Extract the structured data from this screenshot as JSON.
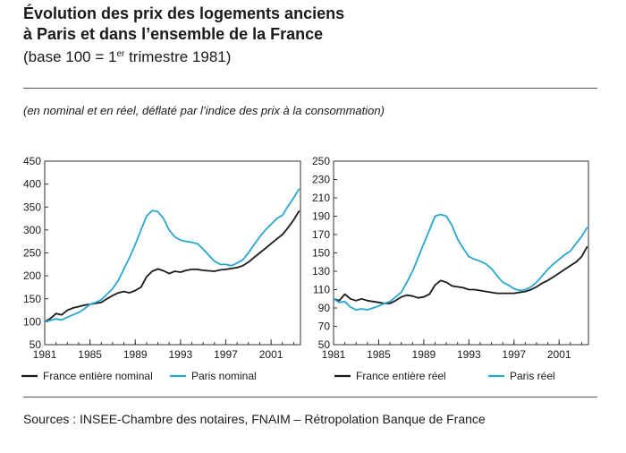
{
  "header": {
    "title_line1": "Évolution des prix des logements anciens",
    "title_line2": "à Paris et dans l’ensemble de la France",
    "base_prefix": "(base 100 = 1",
    "base_sup": "er",
    "base_suffix": " trimestre 1981)",
    "note": "(en nominal et en réel, déflaté par l’indice des prix à la consommation)"
  },
  "footer": {
    "sources": "Sources : INSEE-Chambre des notaires, FNAIM – Rétropolation Banque de France"
  },
  "colors": {
    "france": "#1a1a1a",
    "paris": "#29a6d0"
  },
  "chart_data": [
    {
      "type": "line",
      "xlim": [
        1981,
        2003.6
      ],
      "ylim": [
        50,
        450
      ],
      "yticks": [
        50,
        100,
        150,
        200,
        250,
        300,
        350,
        400,
        450
      ],
      "xticks": [
        1981,
        1985,
        1989,
        1993,
        1997,
        2001
      ],
      "x": [
        1981,
        1981.5,
        1982,
        1982.5,
        1983,
        1983.5,
        1984,
        1984.5,
        1985,
        1985.5,
        1986,
        1986.5,
        1987,
        1987.5,
        1988,
        1988.5,
        1989,
        1989.5,
        1990,
        1990.5,
        1991,
        1991.5,
        1992,
        1992.5,
        1993,
        1993.5,
        1994,
        1994.5,
        1995,
        1995.5,
        1996,
        1996.5,
        1997,
        1997.5,
        1998,
        1998.5,
        1999,
        1999.5,
        2000,
        2000.5,
        2001,
        2001.5,
        2002,
        2002.5,
        2003,
        2003.5
      ],
      "series": [
        {
          "name": "France entière nominal",
          "values": [
            100,
            107,
            118,
            115,
            125,
            130,
            133,
            136,
            138,
            140,
            142,
            150,
            157,
            163,
            166,
            163,
            168,
            175,
            198,
            210,
            215,
            211,
            205,
            210,
            208,
            212,
            214,
            214,
            212,
            211,
            210,
            213,
            214,
            216,
            218,
            222,
            230,
            240,
            250,
            260,
            270,
            280,
            290,
            305,
            322,
            342
          ]
        },
        {
          "name": "Paris nominal",
          "values": [
            100,
            103,
            106,
            104,
            110,
            115,
            120,
            128,
            138,
            142,
            148,
            160,
            172,
            190,
            215,
            240,
            268,
            300,
            330,
            342,
            340,
            325,
            300,
            285,
            278,
            275,
            273,
            270,
            258,
            245,
            232,
            225,
            225,
            222,
            228,
            235,
            250,
            268,
            285,
            300,
            312,
            325,
            332,
            352,
            370,
            390
          ]
        }
      ]
    },
    {
      "type": "line",
      "xlim": [
        1981,
        2003.6
      ],
      "ylim": [
        50,
        250
      ],
      "yticks": [
        50,
        70,
        90,
        110,
        130,
        150,
        170,
        190,
        210,
        230,
        250
      ],
      "xticks": [
        1981,
        1985,
        1989,
        1993,
        1997,
        2001
      ],
      "x": [
        1981,
        1981.5,
        1982,
        1982.5,
        1983,
        1983.5,
        1984,
        1984.5,
        1985,
        1985.5,
        1986,
        1986.5,
        1987,
        1987.5,
        1988,
        1988.5,
        1989,
        1989.5,
        1990,
        1990.5,
        1991,
        1991.5,
        1992,
        1992.5,
        1993,
        1993.5,
        1994,
        1994.5,
        1995,
        1995.5,
        1996,
        1996.5,
        1997,
        1997.5,
        1998,
        1998.5,
        1999,
        1999.5,
        2000,
        2000.5,
        2001,
        2001.5,
        2002,
        2002.5,
        2003,
        2003.5
      ],
      "series": [
        {
          "name": "France entière réel",
          "values": [
            100,
            98,
            105,
            100,
            98,
            100,
            98,
            97,
            96,
            95,
            95,
            98,
            102,
            104,
            103,
            101,
            102,
            105,
            115,
            120,
            118,
            114,
            113,
            112,
            110,
            110,
            109,
            108,
            107,
            106,
            106,
            106,
            106,
            107,
            108,
            110,
            113,
            117,
            120,
            124,
            128,
            132,
            136,
            140,
            146,
            157
          ]
        },
        {
          "name": "Paris réel",
          "values": [
            100,
            96,
            97,
            91,
            88,
            89,
            88,
            90,
            92,
            95,
            97,
            102,
            107,
            118,
            130,
            145,
            160,
            175,
            190,
            192,
            190,
            180,
            165,
            155,
            146,
            143,
            141,
            138,
            133,
            125,
            118,
            115,
            111,
            109,
            110,
            113,
            118,
            125,
            132,
            138,
            143,
            148,
            152,
            160,
            168,
            178
          ]
        }
      ]
    }
  ]
}
